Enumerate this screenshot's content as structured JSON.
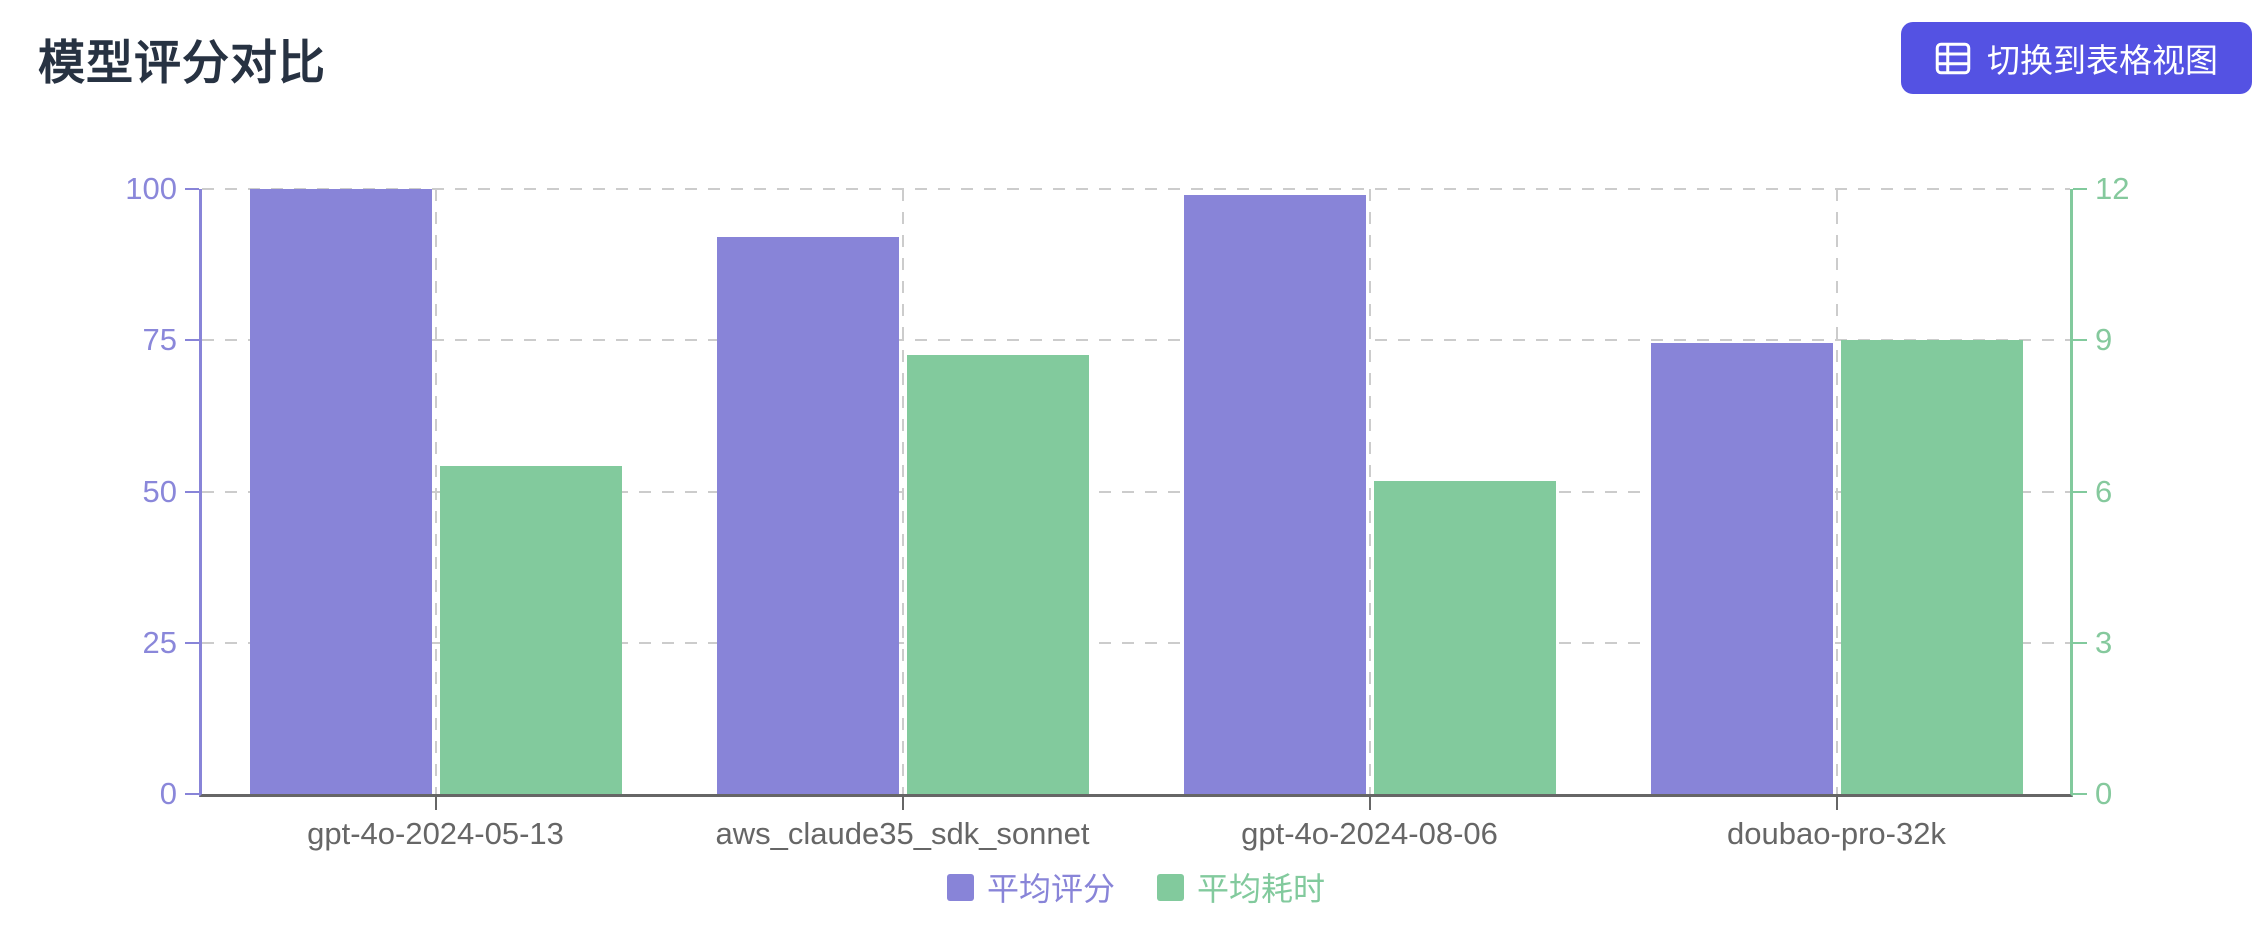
{
  "header": {
    "title": "模型评分对比",
    "view_toggle_button": {
      "label": "切换到表格视图",
      "icon": "table-icon",
      "background_color": "#5452e3",
      "text_color": "#ffffff"
    }
  },
  "chart_data": {
    "type": "bar",
    "title": "模型评分对比",
    "categories": [
      "gpt-4o-2024-05-13",
      "aws_claude35_sdk_sonnet",
      "gpt-4o-2024-08-06",
      "doubao-pro-32k"
    ],
    "series": [
      {
        "name": "平均评分",
        "axis": "left",
        "color": "#8884d8",
        "values": [
          100,
          92,
          99,
          74.5
        ]
      },
      {
        "name": "平均耗时",
        "axis": "right",
        "color": "#82ca9d",
        "values": [
          6.5,
          8.7,
          6.2,
          9
        ]
      }
    ],
    "left_axis": {
      "ticks": [
        0,
        25,
        50,
        75,
        100
      ],
      "range": [
        0,
        100
      ],
      "color": "#8884d8"
    },
    "right_axis": {
      "ticks": [
        0,
        3,
        6,
        9,
        12
      ],
      "range": [
        0,
        12
      ],
      "color": "#82ca9d"
    },
    "grid": "dashed",
    "grid_color": "#cccccc",
    "x_axis_color": "#666666",
    "legend_position": "bottom"
  }
}
